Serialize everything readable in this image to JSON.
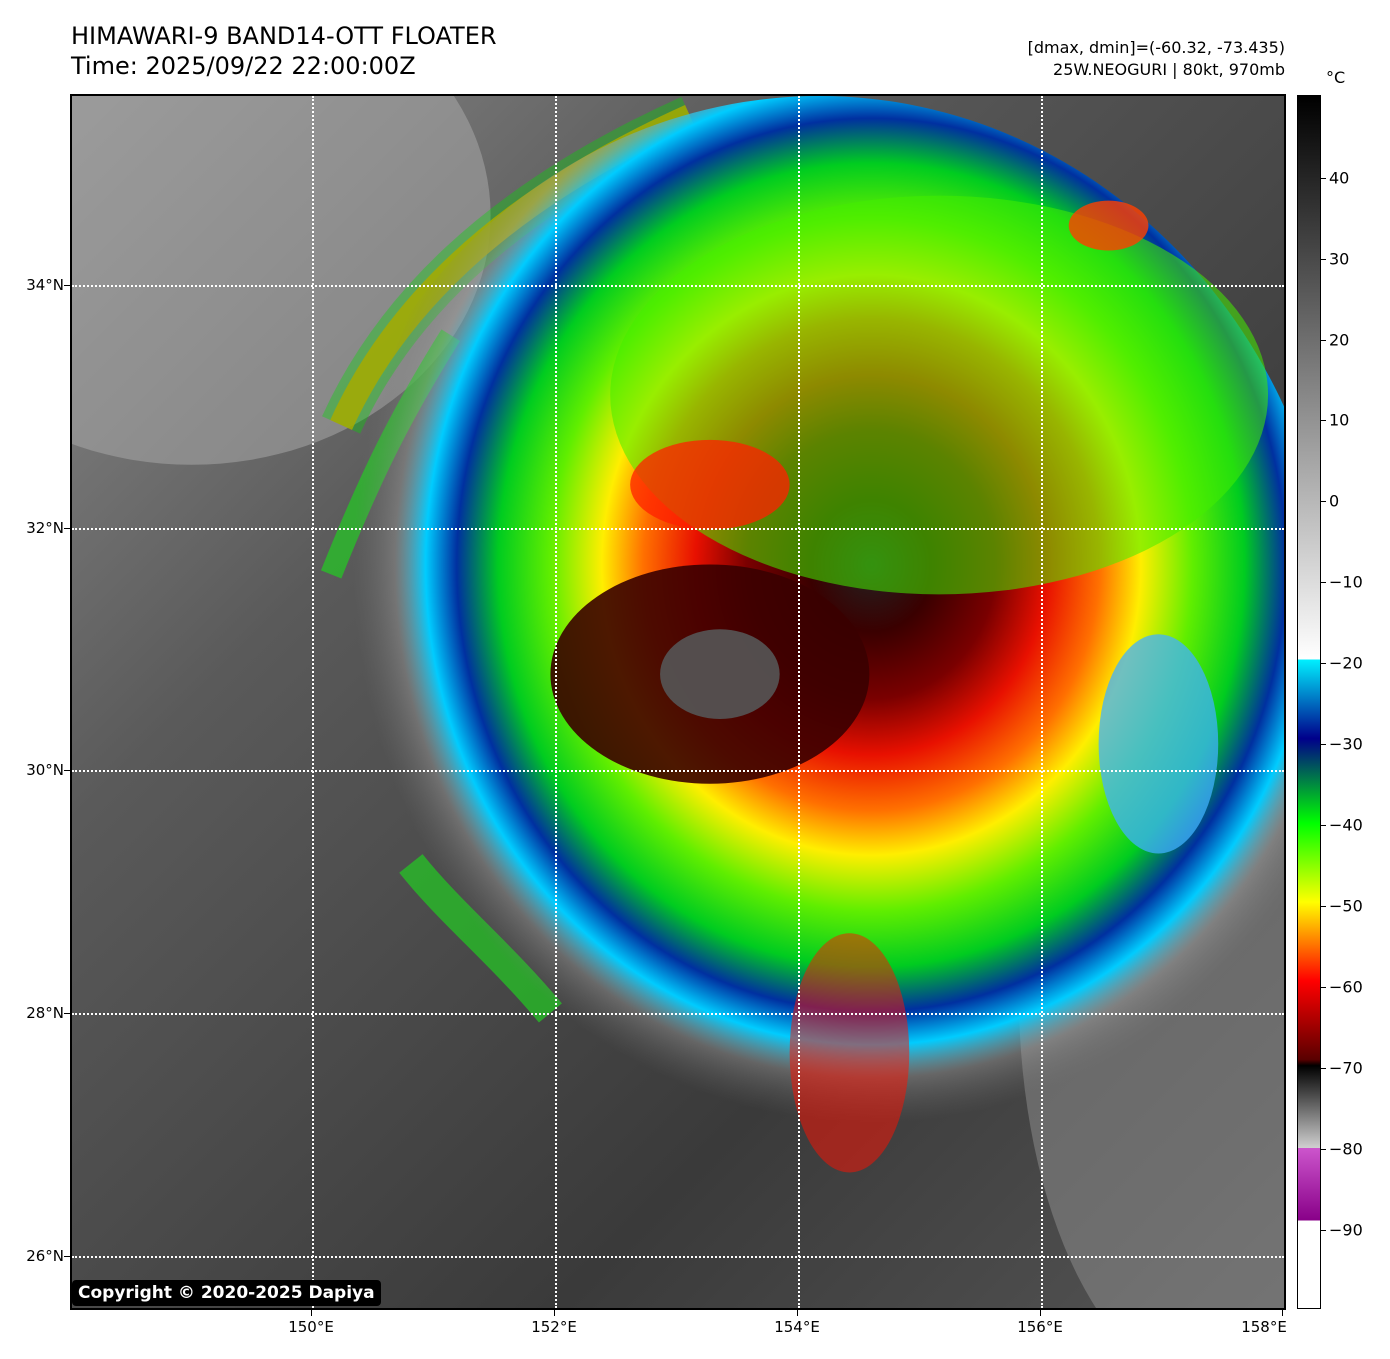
{
  "header": {
    "title_line1": "HIMAWARI-9 BAND14-OTT FLOATER",
    "title_line2": "Time: 2025/09/22 22:00:00Z",
    "info_line1": "[dmax, dmin]=(-60.32, -73.435)",
    "info_line2": "25W.NEOGURI | 80kt, 970mb"
  },
  "map": {
    "lat_labels": [
      "34°N",
      "32°N",
      "30°N",
      "28°N",
      "26°N"
    ],
    "lon_labels": [
      "150°E",
      "152°E",
      "154°E",
      "156°E",
      "158°E"
    ],
    "copyright": "Copyright © 2020-2025 Dapiya"
  },
  "colorbar": {
    "unit": "°C",
    "labels": [
      "40",
      "30",
      "20",
      "10",
      "0",
      "−10",
      "−20",
      "−30",
      "−40",
      "−50",
      "−60",
      "−70",
      "−80",
      "−90"
    ],
    "colors": {
      "warm": "#000000",
      "cyan": "#00f0ff",
      "blue": "#00008b",
      "green": "#00ff00",
      "yellow": "#ffff00",
      "red": "#ff0000",
      "dark_red": "#5a0000",
      "magenta": "#cc55cc",
      "purple": "#880088"
    }
  }
}
